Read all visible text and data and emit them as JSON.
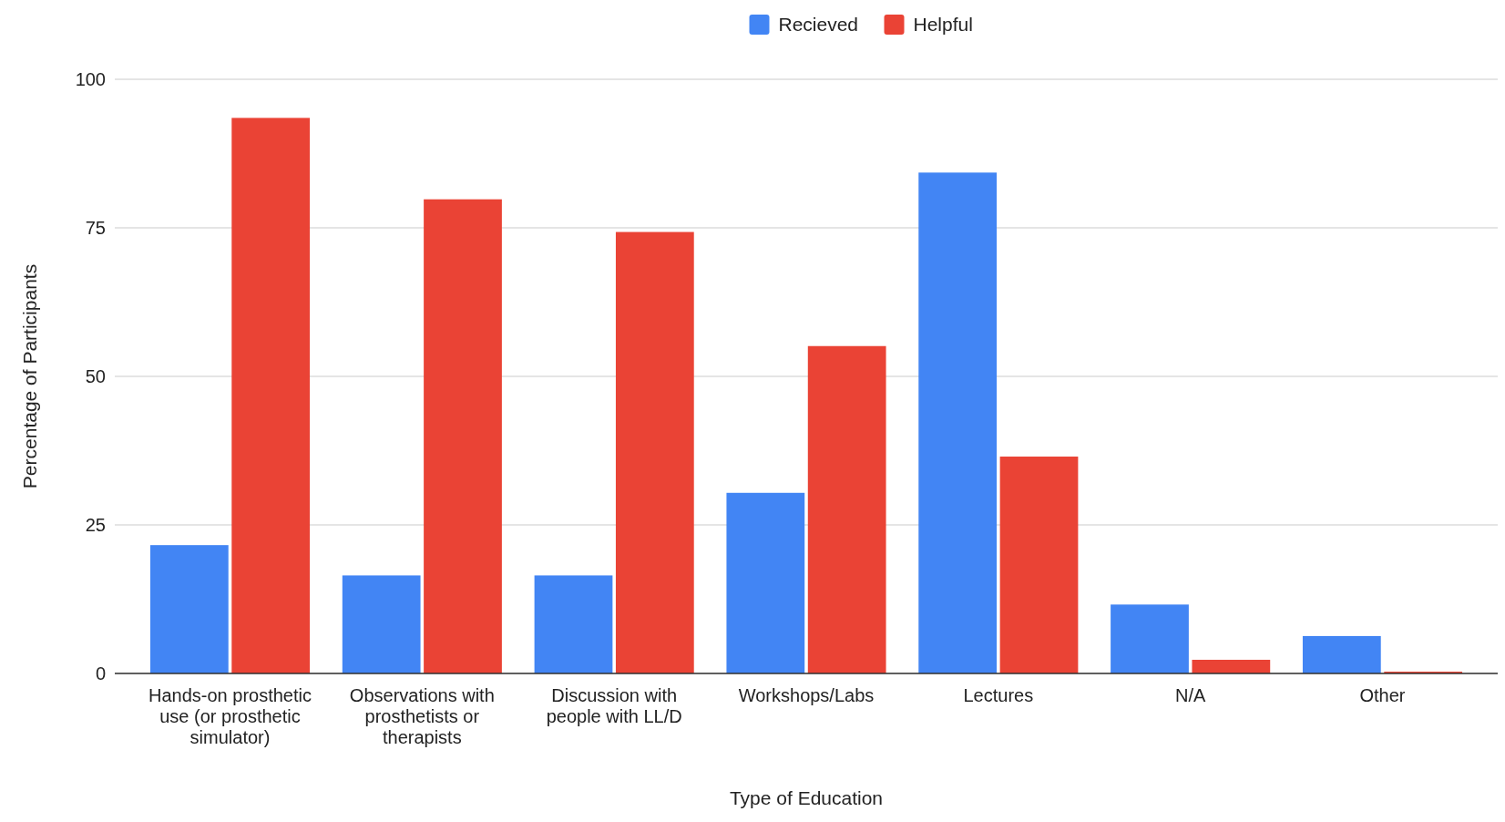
{
  "chart_data": {
    "type": "bar",
    "xlabel": "Type of Education",
    "ylabel": "Percentage of Participants",
    "categories": [
      "Hands-on prosthetic use (or prosthetic simulator)",
      "Observations with prosthetists or therapists",
      "Discussion with people with LL/D",
      "Workshops/Labs",
      "Lectures",
      "N/A",
      "Other"
    ],
    "series": [
      {
        "name": "Recieved",
        "color": "#4285f4",
        "values": [
          21.6,
          16.5,
          16.5,
          30.4,
          84.3,
          11.6,
          6.3
        ]
      },
      {
        "name": "Helpful",
        "color": "#ea4335",
        "values": [
          93.5,
          79.8,
          74.3,
          55.1,
          36.5,
          2.3,
          0.3
        ]
      }
    ],
    "ylim": [
      0,
      100
    ],
    "yticks": [
      0,
      25,
      50,
      75,
      100
    ],
    "grid": "y",
    "legend": "top"
  }
}
